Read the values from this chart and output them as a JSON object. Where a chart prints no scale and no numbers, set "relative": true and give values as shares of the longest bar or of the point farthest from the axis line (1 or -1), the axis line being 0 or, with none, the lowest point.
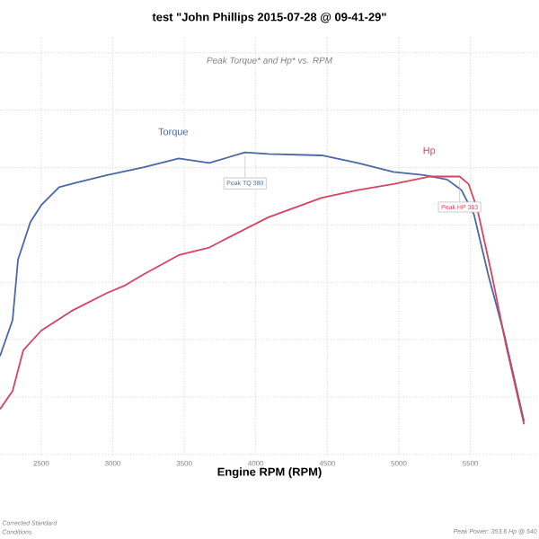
{
  "chart_data": {
    "type": "line",
    "title": "test \"John Phillips 2015-07-28 @ 09-41-29\"",
    "subtitle": "Peak Torque* and Hp* vs. RPM",
    "xlabel": "Engine RPM (RPM)",
    "relative": true,
    "x": [
      2212,
      2300,
      2338,
      2425,
      2500,
      2625,
      2750,
      2962,
      3212,
      3462,
      3675,
      3925,
      4088,
      4462,
      4712,
      4962,
      5175,
      5338,
      5438,
      5525,
      5625,
      5738,
      5875
    ],
    "series": [
      {
        "name": "Torque",
        "color": "#4a67a6",
        "values": [
          0.325,
          0.445,
          0.645,
          0.77,
          0.825,
          0.885,
          0.9,
          0.925,
          0.95,
          0.98,
          0.965,
          1.0,
          0.995,
          0.99,
          0.965,
          0.935,
          0.925,
          0.91,
          0.875,
          0.795,
          0.595,
          0.395,
          0.11
        ]
      },
      {
        "name": "Hp",
        "color": "#d8435f",
        "x": [
          2212,
          2300,
          2375,
          2500,
          2712,
          2962,
          3088,
          3212,
          3462,
          3675,
          3838,
          4088,
          4462,
          4712,
          4962,
          5212,
          5425,
          5488,
          5550,
          5650,
          5750,
          5875
        ],
        "values": [
          0.15,
          0.21,
          0.345,
          0.41,
          0.475,
          0.535,
          0.56,
          0.595,
          0.66,
          0.685,
          0.725,
          0.785,
          0.85,
          0.875,
          0.895,
          0.92,
          0.92,
          0.895,
          0.81,
          0.595,
          0.36,
          0.1
        ]
      }
    ],
    "xlim": [
      2212,
      5980
    ],
    "xticks": [
      2500,
      3000,
      3500,
      4000,
      4500,
      5000,
      5500
    ],
    "annotations": [
      {
        "text": "Peak TQ 380",
        "x": 3925,
        "y": 1.0
      },
      {
        "text": "Peak HP 383",
        "x": 5425,
        "y": 0.92
      },
      "Corrected Standard",
      "Conditions",
      "Peak Power: 353.6 Hp @ 540"
    ],
    "grid": true,
    "line_style": "solid",
    "marker": "none"
  }
}
